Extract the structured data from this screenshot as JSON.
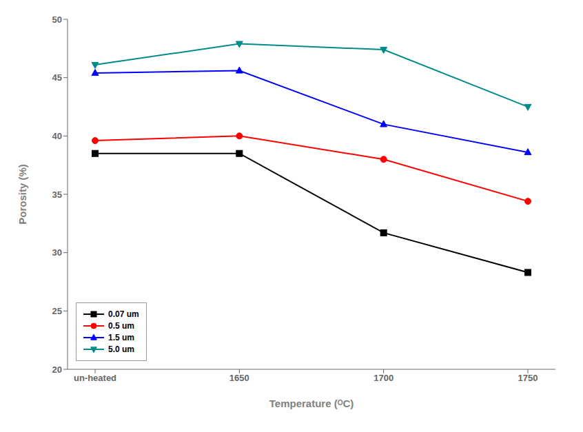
{
  "chart_data": {
    "type": "line",
    "xlabel": "Temperature (ᴼC)",
    "ylabel": "Porosity (%)",
    "categories": [
      "un-heated",
      "1650",
      "1700",
      "1750"
    ],
    "series": [
      {
        "name": "0.07 um",
        "color": "#000000",
        "marker": "square",
        "values": [
          38.5,
          38.5,
          31.7,
          28.3
        ]
      },
      {
        "name": "0.5 um",
        "color": "#ff0000",
        "marker": "circle",
        "values": [
          39.6,
          40.0,
          38.0,
          34.4
        ]
      },
      {
        "name": "1.5 um",
        "color": "#0000ff",
        "marker": "triangle-up",
        "values": [
          45.4,
          45.6,
          41.0,
          38.6
        ]
      },
      {
        "name": "5.0 um",
        "color": "#008B8B",
        "marker": "triangle-down",
        "values": [
          46.1,
          47.9,
          47.4,
          42.5
        ]
      }
    ],
    "ylim": [
      20,
      50
    ],
    "yticks": [
      20,
      25,
      30,
      35,
      40,
      45,
      50
    ],
    "legend": "lower left",
    "grid": false
  }
}
